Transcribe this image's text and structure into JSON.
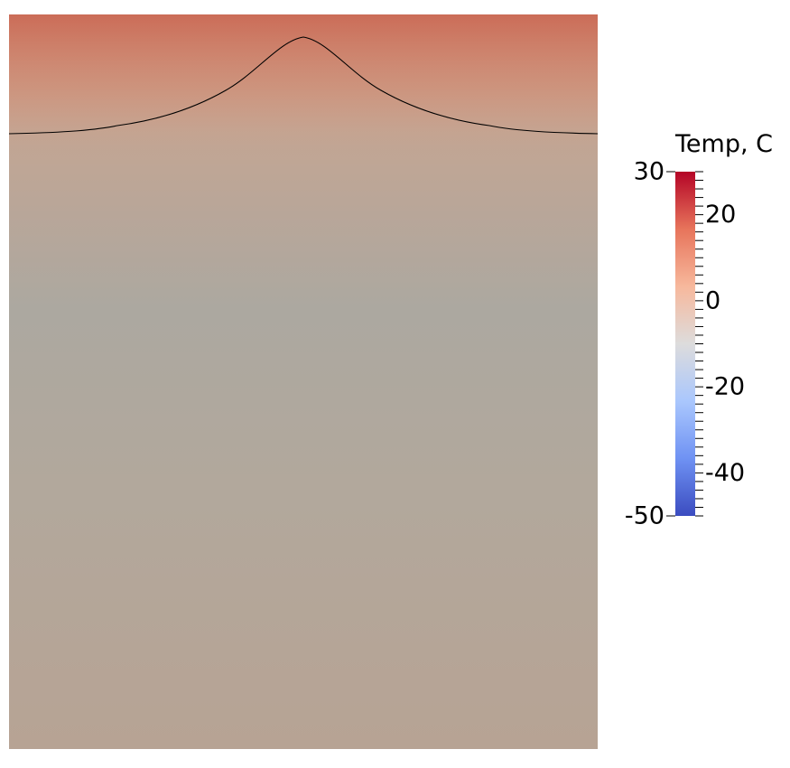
{
  "chart_data": {
    "type": "heatmap",
    "title": "",
    "xlabel": "",
    "ylabel": "",
    "colorbar": {
      "title": "Temp, C",
      "range": [
        -50,
        30
      ],
      "labeled_ticks": [
        30,
        20,
        0,
        -20,
        -40,
        -50
      ],
      "minor_tick_step": 2,
      "colormap": "cool-to-warm",
      "colormap_stops": [
        "#3b4cc0",
        "#6f92f3",
        "#aac7fd",
        "#dddcdc",
        "#f7b89c",
        "#e7745b",
        "#b40426"
      ]
    },
    "field": {
      "description_values": "temperature decreasing with depth from ~30 C at the surface corners to ~-2 C at mid-depth, rising slightly toward ~5 C at the bottom",
      "surface_profile_temps_c": [
        28,
        22,
        8,
        3,
        8,
        22,
        28
      ],
      "depth_profile_temps_c": [
        22,
        8,
        4,
        -2,
        2,
        5,
        6
      ]
    },
    "contour": {
      "level": 8,
      "color": "#000000"
    }
  }
}
